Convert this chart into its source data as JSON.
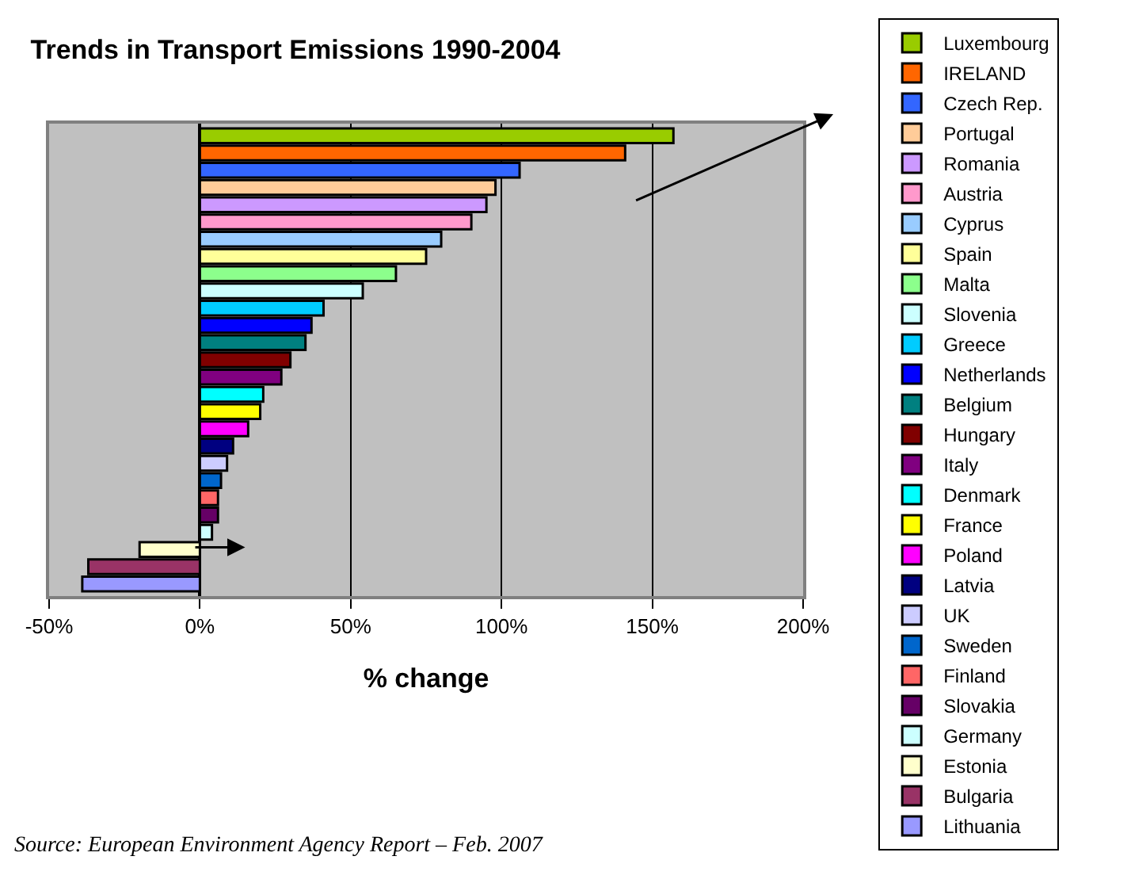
{
  "chart_data": {
    "type": "bar",
    "orientation": "horizontal",
    "title": "Trends in Transport Emissions 1990-2004",
    "xlabel": "% change",
    "categories": [
      null,
      null,
      null,
      null,
      null,
      null,
      null,
      null,
      null,
      null,
      null,
      null,
      null,
      null,
      null,
      null,
      null,
      null,
      null,
      null,
      null,
      null,
      null,
      null,
      null,
      null,
      null
    ],
    "series": [
      {
        "name": "Luxembourg",
        "color": "#99cc00",
        "values": [
          157,
          null,
          null,
          null,
          null,
          null,
          null,
          null,
          null,
          null,
          null,
          null,
          null,
          null,
          null,
          null,
          null,
          null,
          null,
          null,
          null,
          null,
          null,
          null,
          null,
          null,
          null
        ]
      },
      {
        "name": "IRELAND",
        "color": "#ff6600",
        "values": [
          null,
          141,
          null,
          null,
          null,
          null,
          null,
          null,
          null,
          null,
          null,
          null,
          null,
          null,
          null,
          null,
          null,
          null,
          null,
          null,
          null,
          null,
          null,
          null,
          null,
          null,
          null
        ]
      },
      {
        "name": "Czech Rep.",
        "color": "#3366ff",
        "values": [
          null,
          null,
          106,
          null,
          null,
          null,
          null,
          null,
          null,
          null,
          null,
          null,
          null,
          null,
          null,
          null,
          null,
          null,
          null,
          null,
          null,
          null,
          null,
          null,
          null,
          null,
          null
        ]
      },
      {
        "name": "Portugal",
        "color": "#ffcc99",
        "values": [
          null,
          null,
          null,
          98,
          null,
          null,
          null,
          null,
          null,
          null,
          null,
          null,
          null,
          null,
          null,
          null,
          null,
          null,
          null,
          null,
          null,
          null,
          null,
          null,
          null,
          null,
          null
        ]
      },
      {
        "name": "Romania",
        "color": "#cc99ff",
        "values": [
          null,
          null,
          null,
          null,
          95,
          null,
          null,
          null,
          null,
          null,
          null,
          null,
          null,
          null,
          null,
          null,
          null,
          null,
          null,
          null,
          null,
          null,
          null,
          null,
          null,
          null,
          null
        ]
      },
      {
        "name": "Austria",
        "color": "#ff99cc",
        "values": [
          null,
          null,
          null,
          null,
          null,
          90,
          null,
          null,
          null,
          null,
          null,
          null,
          null,
          null,
          null,
          null,
          null,
          null,
          null,
          null,
          null,
          null,
          null,
          null,
          null,
          null,
          null
        ]
      },
      {
        "name": "Cyprus",
        "color": "#99ccff",
        "values": [
          null,
          null,
          null,
          null,
          null,
          null,
          80,
          null,
          null,
          null,
          null,
          null,
          null,
          null,
          null,
          null,
          null,
          null,
          null,
          null,
          null,
          null,
          null,
          null,
          null,
          null,
          null
        ]
      },
      {
        "name": "Spain",
        "color": "#ffff99",
        "values": [
          null,
          null,
          null,
          null,
          null,
          null,
          null,
          75,
          null,
          null,
          null,
          null,
          null,
          null,
          null,
          null,
          null,
          null,
          null,
          null,
          null,
          null,
          null,
          null,
          null,
          null,
          null
        ]
      },
      {
        "name": "Malta",
        "color": "#8cff8c",
        "values": [
          null,
          null,
          null,
          null,
          null,
          null,
          null,
          null,
          65,
          null,
          null,
          null,
          null,
          null,
          null,
          null,
          null,
          null,
          null,
          null,
          null,
          null,
          null,
          null,
          null,
          null,
          null
        ]
      },
      {
        "name": "Slovenia",
        "color": "#ccffff",
        "values": [
          null,
          null,
          null,
          null,
          null,
          null,
          null,
          null,
          null,
          54,
          null,
          null,
          null,
          null,
          null,
          null,
          null,
          null,
          null,
          null,
          null,
          null,
          null,
          null,
          null,
          null,
          null
        ]
      },
      {
        "name": "Greece",
        "color": "#00ccff",
        "values": [
          null,
          null,
          null,
          null,
          null,
          null,
          null,
          null,
          null,
          null,
          41,
          null,
          null,
          null,
          null,
          null,
          null,
          null,
          null,
          null,
          null,
          null,
          null,
          null,
          null,
          null,
          null
        ]
      },
      {
        "name": "Netherlands",
        "color": "#0000ff",
        "values": [
          null,
          null,
          null,
          null,
          null,
          null,
          null,
          null,
          null,
          null,
          null,
          37,
          null,
          null,
          null,
          null,
          null,
          null,
          null,
          null,
          null,
          null,
          null,
          null,
          null,
          null,
          null
        ]
      },
      {
        "name": "Belgium",
        "color": "#008080",
        "values": [
          null,
          null,
          null,
          null,
          null,
          null,
          null,
          null,
          null,
          null,
          null,
          null,
          35,
          null,
          null,
          null,
          null,
          null,
          null,
          null,
          null,
          null,
          null,
          null,
          null,
          null,
          null
        ]
      },
      {
        "name": "Hungary",
        "color": "#800000",
        "values": [
          null,
          null,
          null,
          null,
          null,
          null,
          null,
          null,
          null,
          null,
          null,
          null,
          null,
          30,
          null,
          null,
          null,
          null,
          null,
          null,
          null,
          null,
          null,
          null,
          null,
          null,
          null
        ]
      },
      {
        "name": "Italy",
        "color": "#800080",
        "values": [
          null,
          null,
          null,
          null,
          null,
          null,
          null,
          null,
          null,
          null,
          null,
          null,
          null,
          null,
          27,
          null,
          null,
          null,
          null,
          null,
          null,
          null,
          null,
          null,
          null,
          null,
          null
        ]
      },
      {
        "name": "Denmark",
        "color": "#00ffff",
        "values": [
          null,
          null,
          null,
          null,
          null,
          null,
          null,
          null,
          null,
          null,
          null,
          null,
          null,
          null,
          null,
          21,
          null,
          null,
          null,
          null,
          null,
          null,
          null,
          null,
          null,
          null,
          null
        ]
      },
      {
        "name": "France",
        "color": "#ffff00",
        "values": [
          null,
          null,
          null,
          null,
          null,
          null,
          null,
          null,
          null,
          null,
          null,
          null,
          null,
          null,
          null,
          null,
          20,
          null,
          null,
          null,
          null,
          null,
          null,
          null,
          null,
          null,
          null
        ]
      },
      {
        "name": "Poland",
        "color": "#ff00ff",
        "values": [
          null,
          null,
          null,
          null,
          null,
          null,
          null,
          null,
          null,
          null,
          null,
          null,
          null,
          null,
          null,
          null,
          null,
          16,
          null,
          null,
          null,
          null,
          null,
          null,
          null,
          null,
          null
        ]
      },
      {
        "name": "Latvia",
        "color": "#000080",
        "values": [
          null,
          null,
          null,
          null,
          null,
          null,
          null,
          null,
          null,
          null,
          null,
          null,
          null,
          null,
          null,
          null,
          null,
          null,
          11,
          null,
          null,
          null,
          null,
          null,
          null,
          null,
          null
        ]
      },
      {
        "name": "UK",
        "color": "#ccccff",
        "values": [
          null,
          null,
          null,
          null,
          null,
          null,
          null,
          null,
          null,
          null,
          null,
          null,
          null,
          null,
          null,
          null,
          null,
          null,
          null,
          9,
          null,
          null,
          null,
          null,
          null,
          null,
          null
        ]
      },
      {
        "name": "Sweden",
        "color": "#0066cc",
        "values": [
          null,
          null,
          null,
          null,
          null,
          null,
          null,
          null,
          null,
          null,
          null,
          null,
          null,
          null,
          null,
          null,
          null,
          null,
          null,
          null,
          7,
          null,
          null,
          null,
          null,
          null,
          null
        ]
      },
      {
        "name": "Finland",
        "color": "#ff6666",
        "values": [
          null,
          null,
          null,
          null,
          null,
          null,
          null,
          null,
          null,
          null,
          null,
          null,
          null,
          null,
          null,
          null,
          null,
          null,
          null,
          null,
          null,
          6,
          null,
          null,
          null,
          null,
          null
        ]
      },
      {
        "name": "Slovakia",
        "color": "#660066",
        "values": [
          null,
          null,
          null,
          null,
          null,
          null,
          null,
          null,
          null,
          null,
          null,
          null,
          null,
          null,
          null,
          null,
          null,
          null,
          null,
          null,
          null,
          null,
          6,
          null,
          null,
          null,
          null
        ]
      },
      {
        "name": "Germany",
        "color": "#ccffff",
        "values": [
          null,
          null,
          null,
          null,
          null,
          null,
          null,
          null,
          null,
          null,
          null,
          null,
          null,
          null,
          null,
          null,
          null,
          null,
          null,
          null,
          null,
          null,
          null,
          4,
          null,
          null,
          null
        ]
      },
      {
        "name": "Estonia",
        "color": "#ffffcc",
        "values": [
          null,
          null,
          null,
          null,
          null,
          null,
          null,
          null,
          null,
          null,
          null,
          null,
          null,
          null,
          null,
          null,
          null,
          null,
          null,
          null,
          null,
          null,
          null,
          null,
          -20,
          null,
          null
        ]
      },
      {
        "name": "Bulgaria",
        "color": "#993366",
        "values": [
          null,
          null,
          null,
          null,
          null,
          null,
          null,
          null,
          null,
          null,
          null,
          null,
          null,
          null,
          null,
          null,
          null,
          null,
          null,
          null,
          null,
          null,
          null,
          null,
          null,
          -37,
          null
        ]
      },
      {
        "name": "Lithuania",
        "color": "#9999ff",
        "values": [
          null,
          null,
          null,
          null,
          null,
          null,
          null,
          null,
          null,
          null,
          null,
          null,
          null,
          null,
          null,
          null,
          null,
          null,
          null,
          null,
          null,
          null,
          null,
          null,
          null,
          null,
          -39
        ]
      }
    ],
    "xlim": [
      -50,
      200
    ],
    "xticks": [
      {
        "value": -50,
        "label": "-50%"
      },
      {
        "value": 0,
        "label": "0%"
      },
      {
        "value": 50,
        "label": "50%"
      },
      {
        "value": 100,
        "label": "100%"
      },
      {
        "value": 150,
        "label": "150%"
      },
      {
        "value": 200,
        "label": "200%"
      }
    ],
    "grid": "x",
    "legend": "right",
    "tick_labels": "x",
    "annotations": [
      "Source: European Environment Agency Report – Feb. 2007"
    ]
  }
}
